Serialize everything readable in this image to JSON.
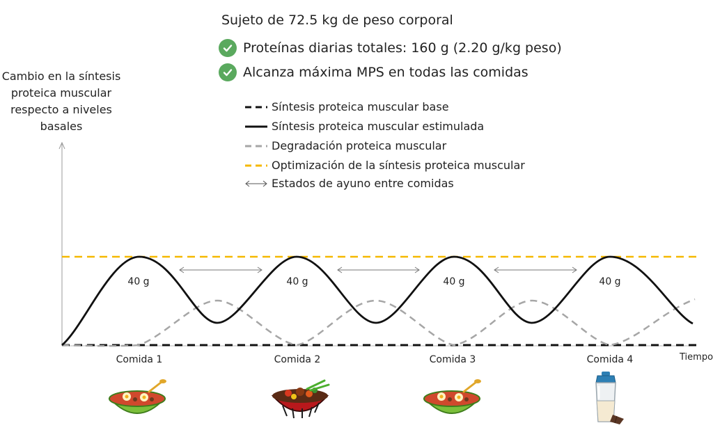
{
  "title": "Sujeto de 72.5 kg de peso corporal",
  "checks": [
    {
      "text": "Proteínas diarias totales: 160 g (2.20 g/kg peso)",
      "icon": "check-circle-icon"
    },
    {
      "text": "Alcanza máxima MPS en todas las comidas",
      "icon": "check-circle-icon"
    }
  ],
  "y_axis_label": "Cambio en la síntesis proteica muscular respecto a niveles basales",
  "x_axis_label": "Tiempo",
  "legend": [
    {
      "label": "Síntesis proteica muscular base",
      "style": "dashed",
      "color": "#111111"
    },
    {
      "label": "Síntesis proteica muscular estimulada",
      "style": "solid",
      "color": "#111111"
    },
    {
      "label": "Degradación proteica muscular",
      "style": "dashed",
      "color": "#a6a6a6"
    },
    {
      "label": "Optimización de la síntesis proteica muscular",
      "style": "dashed",
      "color": "#f5b800"
    },
    {
      "label": "Estados de ayuno entre comidas",
      "style": "double-arrow",
      "color": "#555555"
    }
  ],
  "meals": [
    {
      "label": "Comida 1",
      "protein": "40 g",
      "icon": "salad-bowl-icon"
    },
    {
      "label": "Comida 2",
      "protein": "40 g",
      "icon": "meat-bowl-icon"
    },
    {
      "label": "Comida 3",
      "protein": "40 g",
      "icon": "salad-bowl-icon"
    },
    {
      "label": "Comida 4",
      "protein": "40 g",
      "icon": "protein-shake-icon"
    }
  ],
  "colors": {
    "check": "#5aa95e",
    "optimization": "#f5b800",
    "degradation": "#a6a6a6",
    "synthesis": "#111111"
  }
}
